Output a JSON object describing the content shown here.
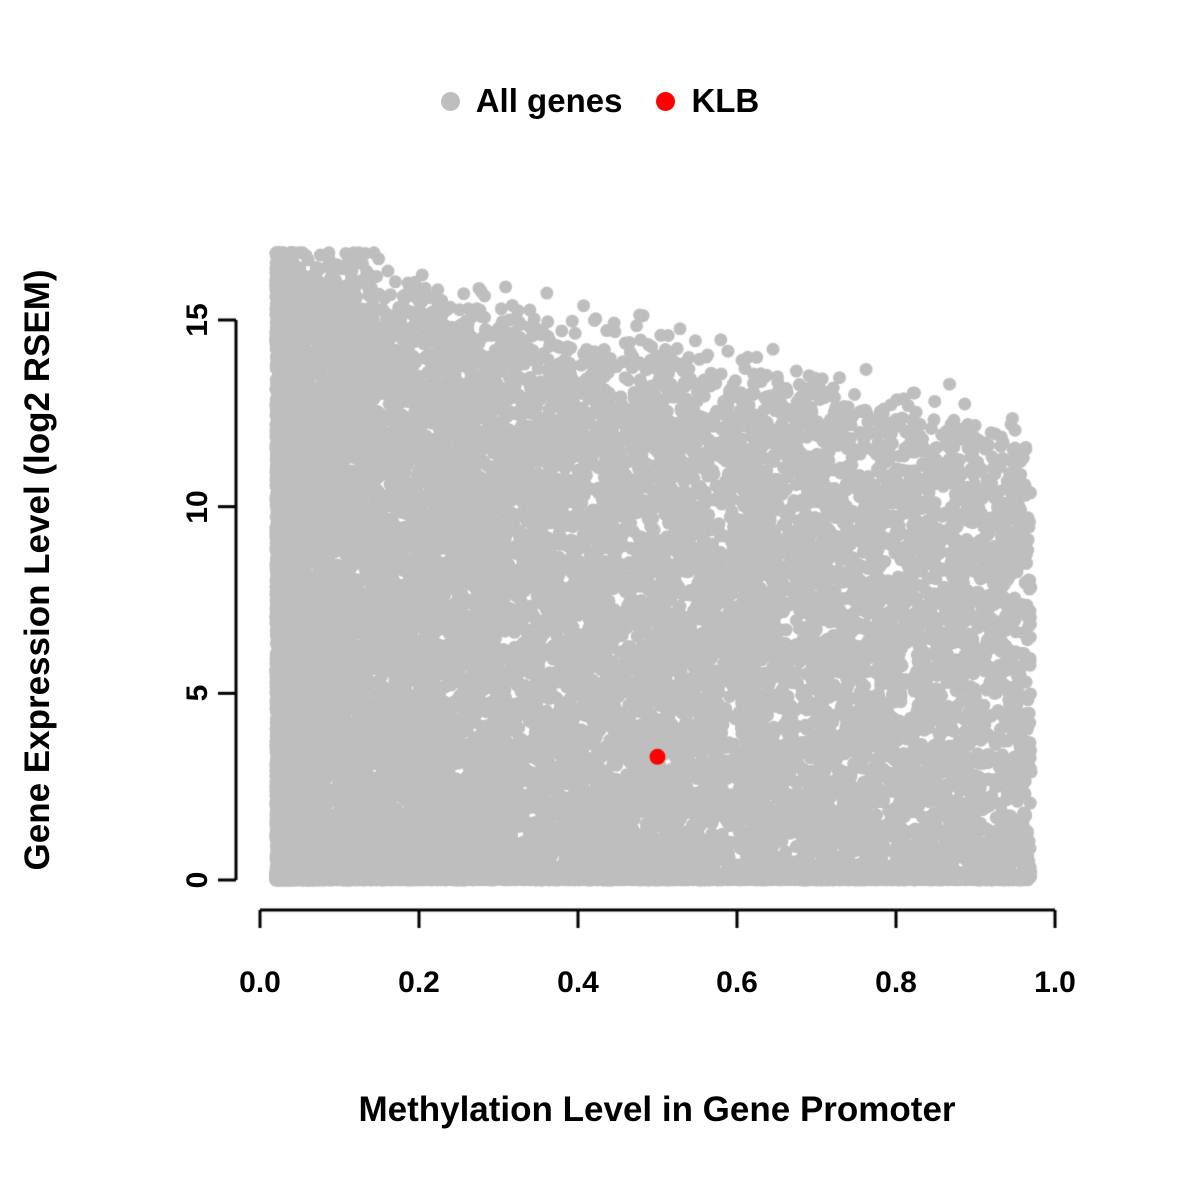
{
  "chart_data": {
    "type": "scatter",
    "title": "",
    "xlabel": "Methylation Level in Gene Promoter",
    "ylabel": "Gene Expression Level (log2 RSEM)",
    "xlim": [
      0,
      1
    ],
    "ylim": [
      0,
      16.8
    ],
    "x_ticks": [
      0.0,
      0.2,
      0.4,
      0.6,
      0.8,
      1.0
    ],
    "x_tick_labels": [
      "0.0",
      "0.2",
      "0.4",
      "0.6",
      "0.8",
      "1.0"
    ],
    "y_ticks": [
      0,
      5,
      10,
      15
    ],
    "y_tick_labels": [
      "0",
      "5",
      "10",
      "15"
    ],
    "grid": false,
    "legend_position": "top-center",
    "series": [
      {
        "name": "All genes",
        "color": "#BEBEBE",
        "type": "dense-cloud",
        "n_points": 18000,
        "point_radius": 6.5,
        "x_range": [
          0.02,
          0.97
        ],
        "upper_envelope": {
          "intercept": 16.6,
          "slope": -5.2,
          "noise_sd": 0.6
        },
        "zero_inflation": 0.18,
        "x_skew": 1.7,
        "y_skew": 1.15,
        "seed": 42
      },
      {
        "name": "KLB",
        "color": "#FF0000",
        "point_radius": 8,
        "points": [
          [
            0.5,
            3.3
          ]
        ]
      }
    ]
  }
}
